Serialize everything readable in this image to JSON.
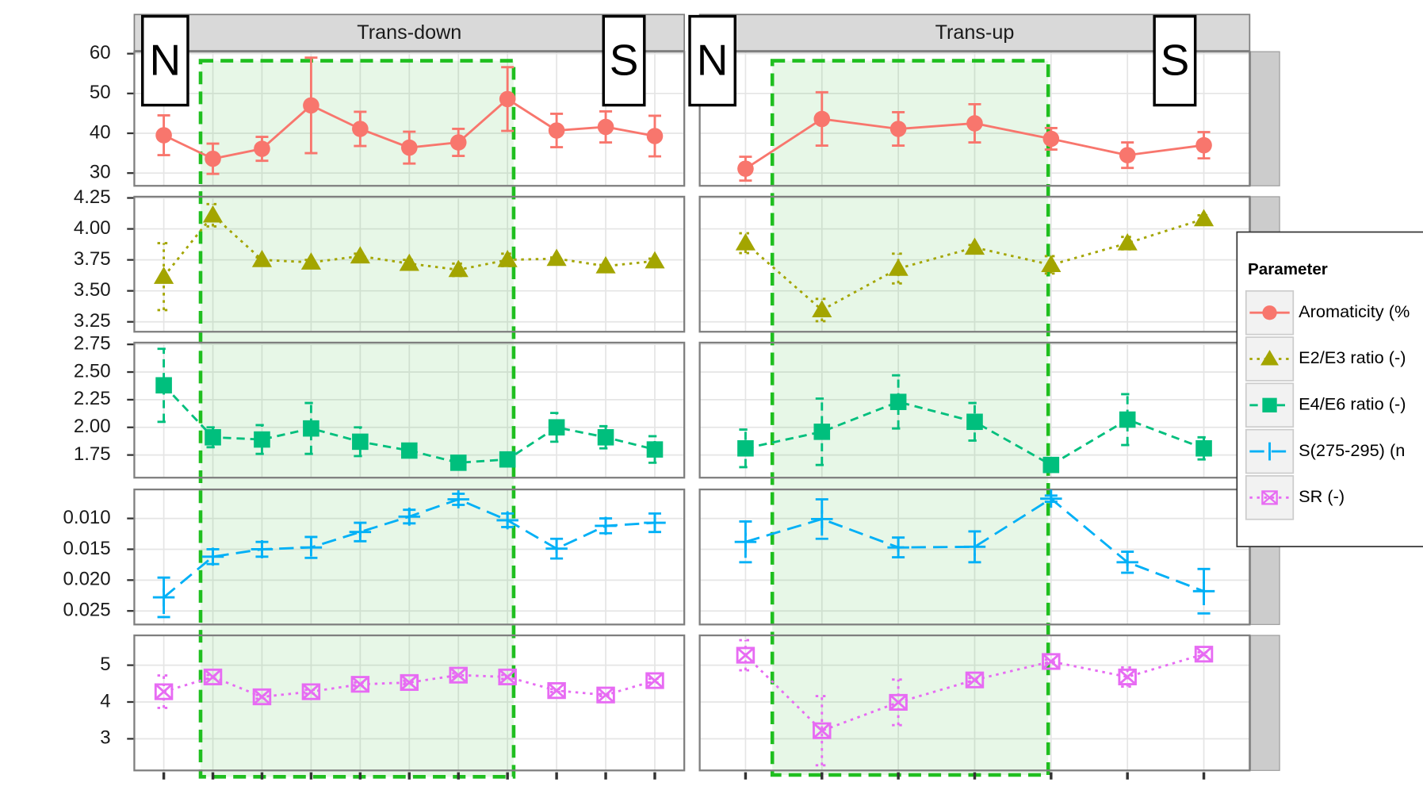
{
  "chart_data": {
    "type": "line",
    "grid": true,
    "legend": {
      "title": "Parameter",
      "position": "right"
    },
    "annotations": [
      "N",
      "S",
      "N",
      "S"
    ],
    "series": [
      {
        "name": "Aromaticity (%",
        "color": "#f8766d",
        "marker": "circle",
        "linetype": "solid",
        "ylim": [
          26.8,
          60.5
        ],
        "yticks": [
          30,
          40,
          50,
          60
        ]
      },
      {
        "name": "E2/E3 ratio (-)",
        "color": "#a3a500",
        "marker": "triangle",
        "linetype": "dotted",
        "ylim": [
          3.17,
          4.26
        ],
        "yticks": [
          {
            "value": 3.25,
            "label": "3.25"
          },
          {
            "value": 3.5,
            "label": "3.50"
          },
          {
            "value": 3.75,
            "label": "3.75"
          },
          {
            "value": 4,
            "label": "4.00"
          },
          {
            "value": 4.25,
            "label": "4.25"
          }
        ]
      },
      {
        "name": "E4/E6 ratio (-)",
        "color": "#00bf7d",
        "marker": "square",
        "linetype": "dashed",
        "ylim": [
          1.545,
          2.766
        ],
        "yticks": [
          {
            "value": 1.75,
            "label": "1.75"
          },
          {
            "value": 2,
            "label": "2.00"
          },
          {
            "value": 2.25,
            "label": "2.25"
          },
          {
            "value": 2.5,
            "label": "2.50"
          },
          {
            "value": 2.75,
            "label": "2.75"
          }
        ]
      },
      {
        "name": "S(275-295)  (n",
        "color": "#00b0f6",
        "marker": "plus",
        "linetype": "longdash",
        "ylim": [
          0.0272,
          0.0053
        ],
        "yticks": [
          {
            "value": 0.01,
            "label": "0.010"
          },
          {
            "value": 0.015,
            "label": "0.015"
          },
          {
            "value": 0.02,
            "label": "0.020"
          },
          {
            "value": 0.025,
            "label": "0.025"
          }
        ]
      },
      {
        "name": "SR (-)",
        "color": "#e76bf3",
        "marker": "square-cross",
        "linetype": "dotted",
        "ylim": [
          2.14,
          5.81
        ],
        "yticks": [
          3,
          4,
          5
        ]
      }
    ],
    "facets": [
      {
        "title": "Trans-down",
        "categories": [
          null,
          null,
          null,
          null,
          null,
          null,
          null,
          null,
          null,
          null,
          null
        ],
        "series": [
          {
            "values": [
              39.5,
              33.6,
              36.1,
              47,
              41.1,
              36.4,
              37.7,
              48.6,
              40.7,
              41.6,
              39.3
            ],
            "errors": [
              5,
              3.8,
              3,
              12,
              4.3,
              4,
              3.4,
              8,
              4.2,
              3.9,
              5.1
            ]
          },
          {
            "values": [
              3.615,
              4.11,
              3.75,
              3.73,
              3.78,
              3.72,
              3.67,
              3.75,
              3.76,
              3.7,
              3.74
            ],
            "errors": [
              0.27,
              0.09,
              0.02,
              0.02,
              0.02,
              0.03,
              0.05,
              0.05,
              0.01,
              0.01,
              0.02
            ]
          },
          {
            "values": [
              2.38,
              1.91,
              1.89,
              1.99,
              1.87,
              1.79,
              1.68,
              1.71,
              2,
              1.91,
              1.8
            ],
            "errors": [
              0.33,
              0.09,
              0.13,
              0.23,
              0.13,
              0.06,
              0.03,
              0.03,
              0.13,
              0.1,
              0.12
            ]
          },
          {
            "values": [
              0.0228,
              0.0162,
              0.015,
              0.0147,
              0.0122,
              0.0097,
              0.0069,
              0.0103,
              0.0149,
              0.0112,
              0.0107
            ],
            "errors": [
              0.0032,
              0.0012,
              0.0012,
              0.0017,
              0.0015,
              0.0011,
              0.0009,
              0.0011,
              0.0016,
              0.0012,
              0.0015
            ]
          },
          {
            "values": [
              4.28,
              4.68,
              4.14,
              4.28,
              4.48,
              4.53,
              4.73,
              4.68,
              4.31,
              4.19,
              4.58
            ],
            "errors": [
              0.44,
              0.05,
              0.05,
              0.05,
              0.05,
              0.05,
              0.05,
              0.05,
              0.04,
              0.03,
              0.05
            ]
          }
        ]
      },
      {
        "title": "Trans-up",
        "categories": [
          null,
          null,
          null,
          null,
          null,
          null,
          null
        ],
        "series": [
          {
            "values": [
              31.1,
              43.6,
              41.1,
              42.5,
              38.6,
              34.5,
              37
            ],
            "errors": [
              3,
              6.7,
              4.2,
              4.8,
              2.7,
              3.2,
              3.3
            ]
          },
          {
            "values": [
              3.885,
              3.345,
              3.68,
              3.85,
              3.71,
              3.885,
              4.08
            ],
            "errors": [
              0.08,
              0.09,
              0.12,
              0.02,
              0.07,
              0.05,
              0.03
            ]
          },
          {
            "values": [
              1.81,
              1.96,
              2.23,
              2.05,
              1.66,
              2.07,
              1.81
            ],
            "errors": [
              0.17,
              0.3,
              0.24,
              0.17,
              0.03,
              0.23,
              0.1
            ]
          },
          {
            "values": [
              0.0138,
              0.0101,
              0.0147,
              0.0146,
              0.0068,
              0.0171,
              0.0218
            ],
            "errors": [
              0.0033,
              0.0032,
              0.0016,
              0.0025,
              0.0005,
              0.0017,
              0.0036
            ]
          },
          {
            "values": [
              5.27,
              3.22,
              3.99,
              4.6,
              5.1,
              4.68,
              5.3
            ],
            "errors": [
              0.41,
              0.94,
              0.62,
              0.05,
              0.05,
              0.26,
              0.05
            ]
          }
        ]
      }
    ]
  }
}
